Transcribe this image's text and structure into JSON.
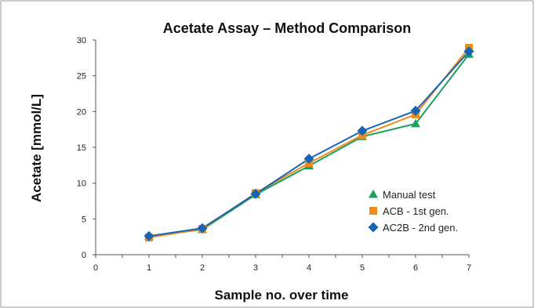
{
  "chart_data": {
    "type": "line",
    "title": "Acetate Assay – Method Comparison",
    "xlabel": "Sample no. over time",
    "ylabel": "Acetate [mmol/L]",
    "xlim": [
      0,
      7
    ],
    "ylim": [
      0,
      30
    ],
    "x_ticks": [
      0,
      1,
      2,
      3,
      4,
      5,
      6,
      7
    ],
    "y_ticks": [
      0,
      5,
      10,
      15,
      20,
      25,
      30
    ],
    "grid": false,
    "legend_position": "right",
    "x": [
      1,
      2,
      3,
      4,
      5,
      6,
      7
    ],
    "series": [
      {
        "name": "Manual test",
        "color": "#1aa15e",
        "marker": "triangle",
        "values": [
          2.6,
          3.5,
          8.4,
          12.4,
          16.5,
          18.3,
          28.0
        ]
      },
      {
        "name": "ACB - 1st gen.",
        "color": "#f08c1e",
        "marker": "square",
        "values": [
          2.4,
          3.6,
          8.6,
          12.8,
          16.7,
          19.6,
          28.9
        ]
      },
      {
        "name": "AC2B - 2nd gen.",
        "color": "#1764b4",
        "marker": "diamond",
        "values": [
          2.6,
          3.7,
          8.5,
          13.4,
          17.3,
          20.1,
          28.4
        ]
      }
    ]
  }
}
